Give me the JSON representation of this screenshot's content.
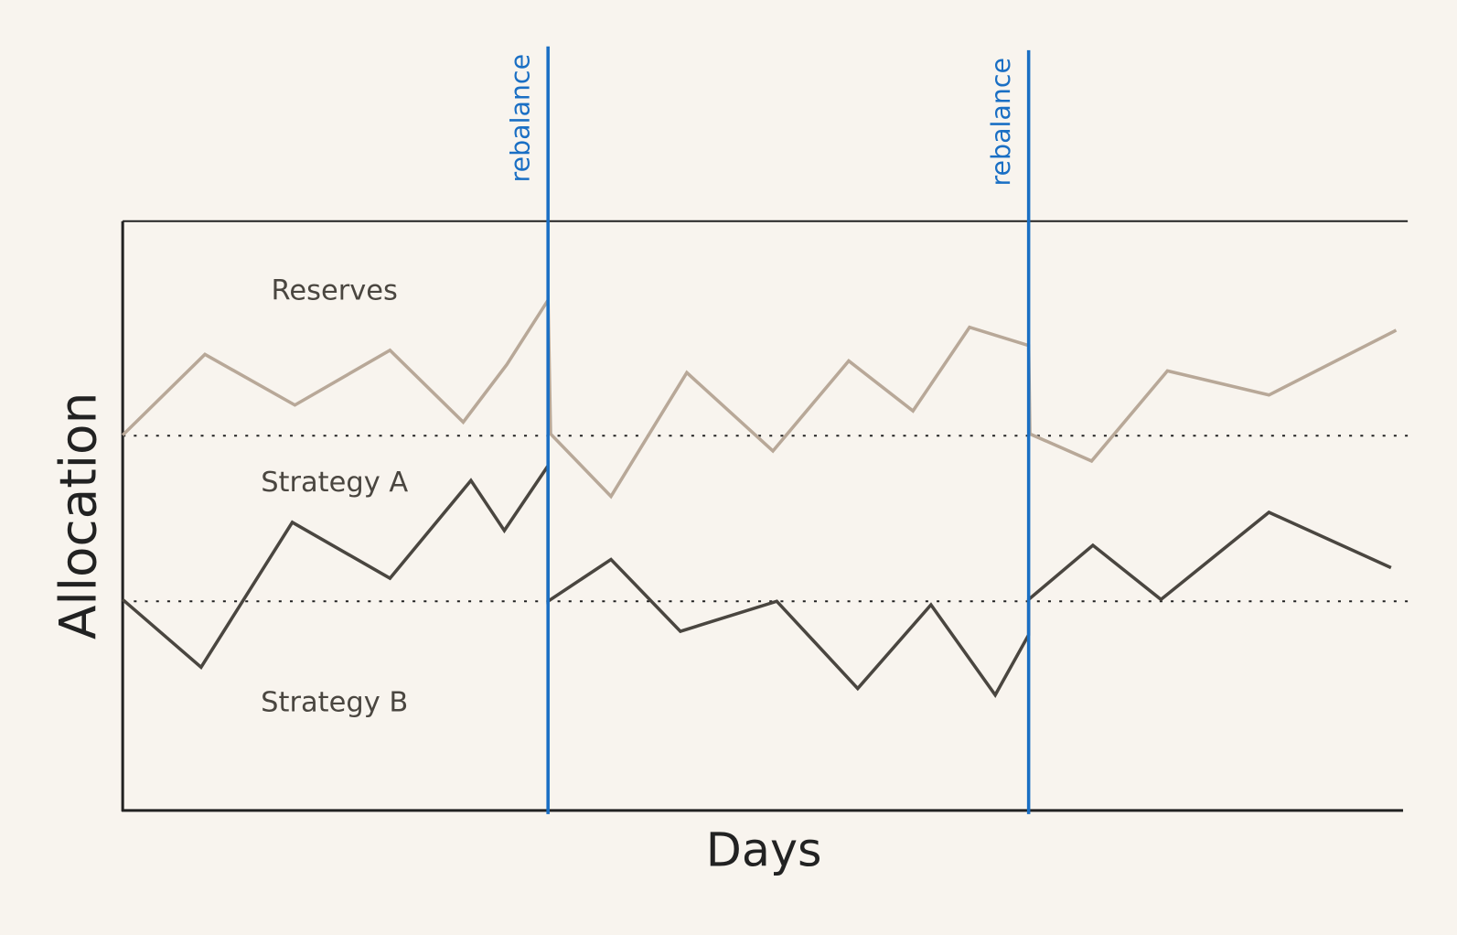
{
  "chart_data": {
    "type": "line",
    "xlabel": "Days",
    "ylabel": "Allocation",
    "xlim": [
      0,
      100
    ],
    "ylim": [
      0,
      1
    ],
    "series": [
      {
        "color": "#b8a898",
        "x": [
          0,
          6.4,
          13.4,
          20.8,
          26.5,
          29.9,
          33.1,
          33.3,
          38.0,
          43.9,
          50.6,
          56.5,
          61.5,
          65.9,
          70.5,
          70.6,
          75.4,
          81.3,
          89.2,
          99.1
        ],
        "values": [
          0.637,
          0.774,
          0.688,
          0.781,
          0.659,
          0.757,
          0.866,
          0.639,
          0.533,
          0.743,
          0.61,
          0.763,
          0.678,
          0.82,
          0.789,
          0.639,
          0.593,
          0.746,
          0.705,
          0.815
        ]
      },
      {
        "color": "#4a4640",
        "x": [
          0,
          6.1,
          13.2,
          20.8,
          27.1,
          29.7,
          33.1,
          33.1,
          38.0,
          43.4,
          50.9,
          57.2,
          62.9,
          67.9,
          70.5,
          70.5,
          75.5,
          80.8,
          89.2,
          98.7
        ],
        "values": [
          0.358,
          0.243,
          0.489,
          0.394,
          0.56,
          0.475,
          0.585,
          0.355,
          0.426,
          0.304,
          0.355,
          0.207,
          0.349,
          0.196,
          0.298,
          0.358,
          0.45,
          0.358,
          0.506,
          0.412
        ]
      }
    ],
    "hlines": [
      0.636,
      0.355
    ],
    "vlines": [
      {
        "x": 33.1,
        "label": "rebalance"
      },
      {
        "x": 70.5,
        "label": "rebalance"
      }
    ],
    "vline_color": "#1a6fc4",
    "regions": [
      "Reserves",
      "Strategy A",
      "Strategy B"
    ]
  }
}
